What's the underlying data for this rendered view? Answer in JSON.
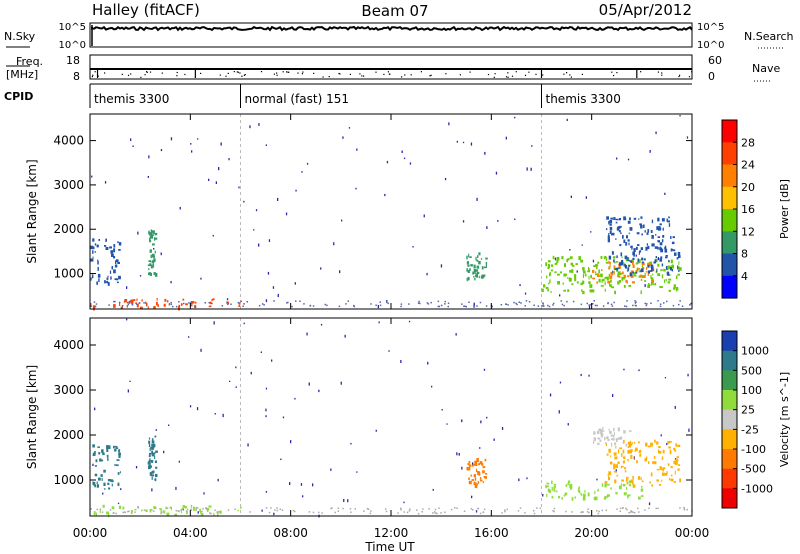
{
  "header": {
    "station": "Halley (fitACF)",
    "beam": "Beam 07",
    "date": "05/Apr/2012"
  },
  "strip_labels": {
    "nsky": "N.Sky",
    "nsearch": "N.Search",
    "freq_line1": "Freq.",
    "freq_line2": "[MHz]",
    "nave": "Nave",
    "cpid": "CPID"
  },
  "strip_ticks": {
    "noise_left_top": "10^5",
    "noise_left_bottom": "10^0",
    "noise_right_top": "10^5",
    "noise_right_bottom": "10^0",
    "freq_left_top": "18",
    "freq_left_bottom": "8",
    "nave_right_top": "60",
    "nave_right_bottom": "0"
  },
  "cpid_segments": [
    {
      "label": "themis 3300",
      "start_hour": 0,
      "end_hour": 6
    },
    {
      "label": "normal (fast) 151",
      "start_hour": 6,
      "end_hour": 18
    },
    {
      "label": "themis 3300",
      "start_hour": 18,
      "end_hour": 24
    }
  ],
  "power_colorbar": {
    "label": "Power [dB]",
    "ticks": [
      "28",
      "24",
      "20",
      "16",
      "12",
      "8",
      "4"
    ],
    "colors": [
      "#ff0000",
      "#ff4000",
      "#ff8000",
      "#ffc000",
      "#66cc00",
      "#339966",
      "#2255aa",
      "#0000ff"
    ]
  },
  "velocity_colorbar": {
    "label": "Velocity [m s^-1]",
    "ticks": [
      "1000",
      "500",
      "100",
      "25",
      "-25",
      "-100",
      "-500",
      "-1000"
    ],
    "colors": [
      "#1a3fb0",
      "#2d7a8a",
      "#3a9a50",
      "#8fdc3a",
      "#c8c8c8",
      "#ffb000",
      "#ff7a00",
      "#ff3a00",
      "#ee0000"
    ]
  },
  "chart_data": [
    {
      "type": "heatmap",
      "name": "power",
      "ylabel": "Slant Range [km]",
      "ylim": [
        200,
        4600
      ],
      "xlim": [
        0,
        24
      ],
      "yticks": [
        1000,
        2000,
        3000,
        4000
      ],
      "regions": [
        {
          "x": [
            0.0,
            1.2
          ],
          "y": [
            800,
            1800
          ],
          "color": "#2255aa"
        },
        {
          "x": [
            2.3,
            2.6
          ],
          "y": [
            1000,
            2000
          ],
          "color": "#339966"
        },
        {
          "x": [
            0.0,
            6.0
          ],
          "y": [
            250,
            450
          ],
          "color": "#ff4000"
        },
        {
          "x": [
            15.0,
            15.8
          ],
          "y": [
            900,
            1500
          ],
          "color": "#339966"
        },
        {
          "x": [
            18.0,
            23.5
          ],
          "y": [
            600,
            1400
          ],
          "color": "#66cc00"
        },
        {
          "x": [
            20.0,
            22.5
          ],
          "y": [
            800,
            1300
          ],
          "color": "#ff8000"
        },
        {
          "x": [
            20.5,
            23.5
          ],
          "y": [
            1000,
            2300
          ],
          "color": "#2255aa"
        }
      ]
    },
    {
      "type": "heatmap",
      "name": "velocity",
      "ylabel": "Slant Range [km]",
      "ylim": [
        200,
        4600
      ],
      "xlim": [
        0,
        24
      ],
      "yticks": [
        1000,
        2000,
        3000,
        4000
      ],
      "xticks": [
        "00:00",
        "04:00",
        "08:00",
        "12:00",
        "16:00",
        "20:00",
        "00:00"
      ],
      "xlabel": "Time UT",
      "regions": [
        {
          "x": [
            0.0,
            1.2
          ],
          "y": [
            800,
            1800
          ],
          "color": "#2d7a8a"
        },
        {
          "x": [
            2.3,
            2.6
          ],
          "y": [
            1000,
            2000
          ],
          "color": "#2d7a8a"
        },
        {
          "x": [
            0.0,
            6.0
          ],
          "y": [
            250,
            450
          ],
          "color": "#8fdc3a"
        },
        {
          "x": [
            15.0,
            15.8
          ],
          "y": [
            900,
            1500
          ],
          "color": "#ff7a00"
        },
        {
          "x": [
            18.0,
            22.0
          ],
          "y": [
            600,
            1000
          ],
          "color": "#8fdc3a"
        },
        {
          "x": [
            20.5,
            23.5
          ],
          "y": [
            900,
            1900
          ],
          "color": "#ffb000"
        },
        {
          "x": [
            20.0,
            21.5
          ],
          "y": [
            1800,
            2200
          ],
          "color": "#c8c8c8"
        }
      ]
    }
  ]
}
